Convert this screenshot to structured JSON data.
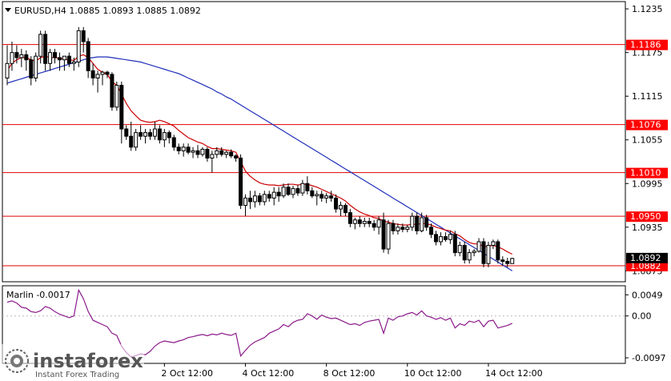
{
  "header": {
    "symbol_line": "EURUSD,H4  1.0885 1.0893 1.0885 1.0892"
  },
  "oscillator": {
    "label": "Marlin -0.0017",
    "ticks": [
      "0.0049",
      "0.00",
      "-0.0097"
    ]
  },
  "watermark": {
    "brand": "instaforex",
    "tagline": "Instant Forex Trading"
  },
  "colors": {
    "bull_candle": "#ffffff",
    "bear_candle": "#000000",
    "ma_fast": "#cc0000",
    "ma_slow": "#1f2fb8",
    "level_line": "#e00000",
    "oscillator_line": "#8b1a8b",
    "current_price_bg": "#000000",
    "level_label_bg": "#ff0000"
  },
  "chart_data": [
    {
      "type": "candlestick",
      "title": "EURUSD,H4  1.0885 1.0893 1.0885 1.0892",
      "ylim": [
        1.086,
        1.1245
      ],
      "price_ticks": [
        "1.1235",
        "1.1175",
        "1.1115",
        "1.1055",
        "1.0995",
        "1.0935",
        "1.0875"
      ],
      "x_tick_labels": [
        {
          "label": "2 Oct 12:00",
          "index": 33
        },
        {
          "label": "4 Oct 12:00",
          "index": 50
        },
        {
          "label": "8 Oct 12:00",
          "index": 67
        },
        {
          "label": "10 Oct 12:00",
          "index": 84
        },
        {
          "label": "14 Oct 12:00",
          "index": 101
        }
      ],
      "levels": [
        {
          "value": 1.1186,
          "label": "1.1186"
        },
        {
          "value": 1.1076,
          "label": "1.1076"
        },
        {
          "value": 1.101,
          "label": "1.1010"
        },
        {
          "value": 1.095,
          "label": "1.0950"
        },
        {
          "value": 1.0882,
          "label": "1.0882"
        }
      ],
      "current_price": {
        "value": 1.0892,
        "label": "1.0892"
      },
      "ohlc": [
        [
          1.114,
          1.1185,
          1.113,
          1.116
        ],
        [
          1.116,
          1.119,
          1.115,
          1.1175
        ],
        [
          1.1175,
          1.1185,
          1.116,
          1.1168
        ],
        [
          1.1168,
          1.118,
          1.1155,
          1.1172
        ],
        [
          1.1172,
          1.1178,
          1.115,
          1.1165
        ],
        [
          1.1165,
          1.117,
          1.113,
          1.114
        ],
        [
          1.114,
          1.1175,
          1.1135,
          1.117
        ],
        [
          1.117,
          1.1205,
          1.116,
          1.12
        ],
        [
          1.12,
          1.1205,
          1.115,
          1.116
        ],
        [
          1.116,
          1.118,
          1.115,
          1.1175
        ],
        [
          1.1175,
          1.118,
          1.116,
          1.1168
        ],
        [
          1.1168,
          1.1175,
          1.115,
          1.1165
        ],
        [
          1.1165,
          1.117,
          1.115,
          1.117
        ],
        [
          1.117,
          1.1175,
          1.1155,
          1.116
        ],
        [
          1.116,
          1.1168,
          1.115,
          1.1162
        ],
        [
          1.1162,
          1.121,
          1.1155,
          1.1205
        ],
        [
          1.1205,
          1.121,
          1.1175,
          1.119
        ],
        [
          1.119,
          1.1195,
          1.114,
          1.115
        ],
        [
          1.115,
          1.116,
          1.113,
          1.114
        ],
        [
          1.114,
          1.115,
          1.112,
          1.1145
        ],
        [
          1.1145,
          1.115,
          1.113,
          1.1148
        ],
        [
          1.1148,
          1.115,
          1.114,
          1.1145
        ],
        [
          1.1145,
          1.1148,
          1.1095,
          1.11
        ],
        [
          1.11,
          1.1135,
          1.1095,
          1.113
        ],
        [
          1.113,
          1.1135,
          1.105,
          1.107
        ],
        [
          1.107,
          1.1075,
          1.1055,
          1.106
        ],
        [
          1.106,
          1.108,
          1.104,
          1.1045
        ],
        [
          1.1045,
          1.107,
          1.104,
          1.1065
        ],
        [
          1.1065,
          1.1075,
          1.1055,
          1.106
        ],
        [
          1.106,
          1.107,
          1.105,
          1.1065
        ],
        [
          1.1065,
          1.107,
          1.1055,
          1.106
        ],
        [
          1.106,
          1.108,
          1.1055,
          1.107
        ],
        [
          1.107,
          1.1075,
          1.105,
          1.1055
        ],
        [
          1.1055,
          1.107,
          1.1045,
          1.1065
        ],
        [
          1.1065,
          1.1068,
          1.105,
          1.1058
        ],
        [
          1.1058,
          1.1062,
          1.104,
          1.1045
        ],
        [
          1.1045,
          1.105,
          1.1035,
          1.104
        ],
        [
          1.104,
          1.105,
          1.1032,
          1.1045
        ],
        [
          1.1045,
          1.105,
          1.1035,
          1.1038
        ],
        [
          1.1038,
          1.1045,
          1.103,
          1.104
        ],
        [
          1.104,
          1.1048,
          1.103,
          1.1035
        ],
        [
          1.1035,
          1.1045,
          1.1032,
          1.1042
        ],
        [
          1.1042,
          1.1045,
          1.1025,
          1.103
        ],
        [
          1.103,
          1.104,
          1.101,
          1.1035
        ],
        [
          1.1035,
          1.1045,
          1.103,
          1.104
        ],
        [
          1.104,
          1.1045,
          1.1032,
          1.1035
        ],
        [
          1.1035,
          1.104,
          1.103,
          1.1038
        ],
        [
          1.1038,
          1.1042,
          1.103,
          1.1033
        ],
        [
          1.1033,
          1.1035,
          1.1025,
          1.103
        ],
        [
          1.103,
          1.1035,
          1.096,
          1.0965
        ],
        [
          1.0965,
          1.098,
          1.095,
          1.0975
        ],
        [
          1.0975,
          1.0985,
          1.096,
          1.097
        ],
        [
          1.097,
          1.0985,
          1.0962,
          1.0978
        ],
        [
          1.0978,
          1.0982,
          1.0965,
          1.097
        ],
        [
          1.097,
          1.0985,
          1.0965,
          1.098
        ],
        [
          1.098,
          1.0985,
          1.097,
          1.0975
        ],
        [
          1.0975,
          1.099,
          1.0965,
          1.0983
        ],
        [
          1.0983,
          1.099,
          1.097,
          1.0978
        ],
        [
          1.0978,
          1.0995,
          1.0975,
          1.099
        ],
        [
          1.099,
          1.0995,
          1.0978,
          1.098
        ],
        [
          1.098,
          1.0992,
          1.0975,
          1.0988
        ],
        [
          1.0988,
          1.0993,
          1.0978,
          1.0982
        ],
        [
          1.0982,
          1.1,
          1.0978,
          1.0995
        ],
        [
          1.0995,
          1.1005,
          1.098,
          1.0985
        ],
        [
          1.0985,
          1.099,
          1.0975,
          1.0978
        ],
        [
          1.0978,
          1.0985,
          1.0965,
          1.098
        ],
        [
          1.098,
          1.0985,
          1.097,
          1.0975
        ],
        [
          1.0975,
          1.0982,
          1.0968,
          1.0978
        ],
        [
          1.0978,
          1.0985,
          1.097,
          1.0975
        ],
        [
          1.0975,
          1.098,
          1.0955,
          1.096
        ],
        [
          1.096,
          1.097,
          1.095,
          1.0965
        ],
        [
          1.0965,
          1.0968,
          1.095,
          1.0955
        ],
        [
          1.0955,
          1.096,
          1.0935,
          1.094
        ],
        [
          1.094,
          1.0948,
          1.0932,
          1.0945
        ],
        [
          1.0945,
          1.095,
          1.0935,
          1.094
        ],
        [
          1.094,
          1.0948,
          1.0935,
          1.0943
        ],
        [
          1.0943,
          1.0948,
          1.0935,
          1.094
        ],
        [
          1.094,
          1.0945,
          1.093,
          1.0935
        ],
        [
          1.0935,
          1.095,
          1.0925,
          1.0945
        ],
        [
          1.0945,
          1.0955,
          1.09,
          1.0905
        ],
        [
          1.0905,
          1.0945,
          1.0898,
          1.094
        ],
        [
          1.094,
          1.0945,
          1.0925,
          1.093
        ],
        [
          1.093,
          1.094,
          1.0925,
          1.0935
        ],
        [
          1.0935,
          1.094,
          1.0928,
          1.0932
        ],
        [
          1.0932,
          1.0938,
          1.0928,
          1.0935
        ],
        [
          1.0935,
          1.0955,
          1.093,
          1.095
        ],
        [
          1.095,
          1.0955,
          1.0925,
          1.093
        ],
        [
          1.093,
          1.0955,
          1.0928,
          1.0948
        ],
        [
          1.0948,
          1.0952,
          1.093,
          1.0935
        ],
        [
          1.0935,
          1.094,
          1.092,
          1.0925
        ],
        [
          1.0925,
          1.093,
          1.091,
          1.0915
        ],
        [
          1.0915,
          1.0928,
          1.091,
          1.0922
        ],
        [
          1.0922,
          1.0928,
          1.0915,
          1.0918
        ],
        [
          1.0918,
          1.093,
          1.0912,
          1.0925
        ],
        [
          1.0925,
          1.093,
          1.0895,
          1.09
        ],
        [
          1.09,
          1.0915,
          1.0895,
          1.091
        ],
        [
          1.091,
          1.0915,
          1.0885,
          1.089
        ],
        [
          1.089,
          1.0905,
          1.0885,
          1.09
        ],
        [
          1.09,
          1.0905,
          1.0895,
          1.0902
        ],
        [
          1.0902,
          1.092,
          1.09,
          1.0915
        ],
        [
          1.0915,
          1.092,
          1.088,
          1.0885
        ],
        [
          1.0885,
          1.0915,
          1.088,
          1.091
        ],
        [
          1.091,
          1.0918,
          1.0905,
          1.0915
        ],
        [
          1.0915,
          1.0918,
          1.0885,
          1.089
        ],
        [
          1.089,
          1.0895,
          1.0882,
          1.0888
        ],
        [
          1.0888,
          1.0893,
          1.088,
          1.0885
        ],
        [
          1.0885,
          1.0893,
          1.0885,
          1.0892
        ]
      ],
      "ma_fast": [
        1.115,
        1.116,
        1.1165,
        1.1168,
        1.1168,
        1.1165,
        1.1163,
        1.1168,
        1.117,
        1.1168,
        1.1168,
        1.1167,
        1.1166,
        1.1165,
        1.1164,
        1.117,
        1.1172,
        1.1168,
        1.116,
        1.1152,
        1.1148,
        1.1145,
        1.1135,
        1.113,
        1.1118,
        1.1105,
        1.1095,
        1.1088,
        1.1082,
        1.108,
        1.1079,
        1.108,
        1.1082,
        1.108,
        1.1077,
        1.1074,
        1.1068,
        1.1063,
        1.1058,
        1.1055,
        1.1052,
        1.105,
        1.1046,
        1.1043,
        1.1043,
        1.1042,
        1.1041,
        1.104,
        1.1038,
        1.1025,
        1.1012,
        1.1005,
        1.1,
        1.0996,
        1.0994,
        1.0993,
        1.0993,
        1.0992,
        1.0993,
        1.0994,
        1.0994,
        1.0993,
        1.0994,
        1.0994,
        1.0992,
        1.099,
        1.0987,
        1.0984,
        1.0981,
        1.0978,
        1.0975,
        1.0971,
        1.0965,
        1.096,
        1.0956,
        1.0953,
        1.0951,
        1.0948,
        1.0947,
        1.0943,
        1.0942,
        1.094,
        1.0939,
        1.0938,
        1.0938,
        1.0939,
        1.0939,
        1.094,
        1.094,
        1.0938,
        1.0935,
        1.0933,
        1.0931,
        1.093,
        1.0926,
        1.0923,
        1.0918,
        1.0914,
        1.0912,
        1.0912,
        1.0908,
        1.0909,
        1.091,
        1.0908,
        1.0905,
        1.0901,
        1.0898
      ],
      "ma_slow": [
        1.1133,
        1.1135,
        1.1137,
        1.1139,
        1.1141,
        1.1143,
        1.1145,
        1.1147,
        1.1149,
        1.1151,
        1.1153,
        1.1155,
        1.1157,
        1.1159,
        1.1161,
        1.1163,
        1.1165,
        1.1167,
        1.1168,
        1.1169,
        1.1169,
        1.1169,
        1.1168,
        1.1167,
        1.1166,
        1.1165,
        1.1164,
        1.1163,
        1.1162,
        1.116,
        1.1158,
        1.1156,
        1.1154,
        1.1152,
        1.115,
        1.1148,
        1.1146,
        1.1143,
        1.114,
        1.1137,
        1.1134,
        1.1131,
        1.1128,
        1.1125,
        1.1121,
        1.1118,
        1.1114,
        1.1111,
        1.1107,
        1.1103,
        1.1099,
        1.1095,
        1.1091,
        1.1087,
        1.1083,
        1.1079,
        1.1075,
        1.1071,
        1.1067,
        1.1063,
        1.1059,
        1.1055,
        1.1051,
        1.1047,
        1.1043,
        1.1039,
        1.1035,
        1.1031,
        1.1027,
        1.1023,
        1.1019,
        1.1015,
        1.1011,
        1.1007,
        1.1003,
        1.0999,
        1.0995,
        1.0991,
        1.0987,
        1.0983,
        1.0979,
        1.0975,
        1.0971,
        1.0967,
        1.0963,
        1.0959,
        1.0955,
        1.0951,
        1.0947,
        1.0943,
        1.0939,
        1.0935,
        1.0931,
        1.0927,
        1.0923,
        1.0919,
        1.0915,
        1.0911,
        1.0907,
        1.0903,
        1.0899,
        1.0895,
        1.0891,
        1.0887,
        1.0883,
        1.0879,
        1.0875
      ]
    },
    {
      "type": "line",
      "title": "Marlin -0.0017",
      "ylim": [
        -0.011,
        0.007
      ],
      "tick_labels": [
        "0.0049",
        "0.00",
        "-0.0097"
      ],
      "series": [
        {
          "name": "Marlin",
          "values": [
            0.0032,
            0.0035,
            0.003,
            0.002,
            0.0018,
            0.001,
            0.0008,
            0.0012,
            0.0022,
            0.0018,
            0.001,
            0.0004,
            0.0,
            -0.0004,
            0.0,
            0.006,
            0.004,
            0.001,
            -0.001,
            -0.0015,
            -0.002,
            -0.0025,
            -0.004,
            -0.0045,
            -0.007,
            -0.0085,
            -0.0095,
            -0.0092,
            -0.0088,
            -0.009,
            -0.0082,
            -0.007,
            -0.0062,
            -0.0058,
            -0.006,
            -0.0062,
            -0.0058,
            -0.0055,
            -0.005,
            -0.0048,
            -0.0045,
            -0.0043,
            -0.0046,
            -0.0042,
            -0.0044,
            -0.004,
            -0.0043,
            -0.0045,
            -0.004,
            -0.0093,
            -0.008,
            -0.0068,
            -0.006,
            -0.0055,
            -0.005,
            -0.004,
            -0.0035,
            -0.003,
            -0.002,
            -0.0025,
            -0.0015,
            -0.001,
            -0.0008,
            0.0005,
            0.0,
            -0.0008,
            0.0002,
            -0.0003,
            -0.0006,
            -0.0005,
            -0.001,
            -0.0015,
            -0.002,
            -0.0018,
            -0.0022,
            -0.0015,
            -0.0012,
            -0.001,
            -0.0008,
            -0.004,
            -0.0005,
            -0.001,
            -0.0002,
            0.0,
            0.0005,
            0.0008,
            0.0002,
            0.0012,
            0.0,
            -0.0003,
            -0.0008,
            -0.0004,
            -0.001,
            -0.0005,
            -0.0028,
            -0.0018,
            -0.0022,
            -0.0012,
            -0.0015,
            -0.001,
            -0.0025,
            -0.0012,
            -0.001,
            -0.0028,
            -0.0025,
            -0.0022,
            -0.0017
          ]
        }
      ]
    }
  ]
}
